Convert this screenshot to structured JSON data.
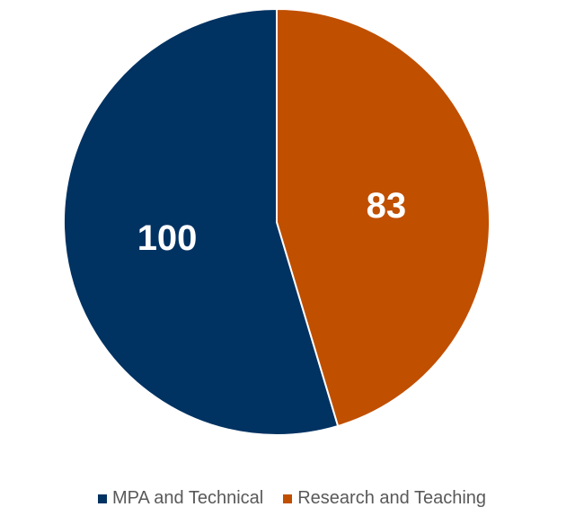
{
  "chart_data": {
    "type": "pie",
    "slices": [
      {
        "label": "MPA and Technical",
        "value": 100,
        "color": "#003262"
      },
      {
        "label": "Research and Teaching",
        "value": 83,
        "color": "#C04F00"
      }
    ],
    "data_labels": [
      "100",
      "83"
    ],
    "legend_position": "bottom",
    "start_direction": "top",
    "order": "counterclockwise"
  },
  "legend": {
    "items": [
      {
        "label": "MPA and Technical",
        "color": "#003262"
      },
      {
        "label": "Research and Teaching",
        "color": "#C04F00"
      }
    ]
  }
}
